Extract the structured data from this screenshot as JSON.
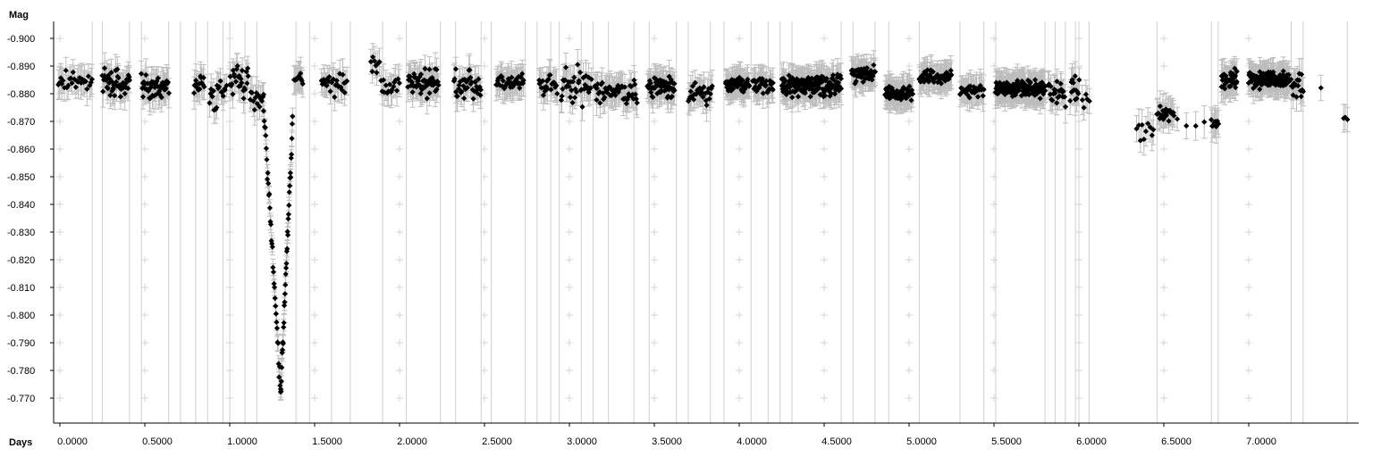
{
  "chart_data": {
    "type": "scatter",
    "xlabel": "Days",
    "ylabel": "Mag",
    "xlim": [
      -0.01,
      7.6
    ],
    "ylim": [
      -0.765,
      -0.907
    ],
    "y_inverted": true,
    "x_ticks": [
      0.0,
      0.5,
      1.0,
      1.5,
      2.0,
      2.5,
      3.0,
      3.5,
      4.0,
      4.5,
      5.0,
      5.5,
      6.0,
      6.5,
      7.0
    ],
    "x_tick_labels": [
      "0.0000",
      "0.5000",
      "1.0000",
      "1.5000",
      "2.0000",
      "2.5000",
      "3.0000",
      "3.5000",
      "4.0000",
      "4.5000",
      "5.0000",
      "5.5000",
      "6.0000",
      "6.5000",
      "7.0000"
    ],
    "y_ticks": [
      -0.9,
      -0.89,
      -0.88,
      -0.87,
      -0.86,
      -0.85,
      -0.84,
      -0.83,
      -0.82,
      -0.81,
      -0.8,
      -0.79,
      -0.78,
      -0.77
    ],
    "y_tick_labels": [
      "-0.900",
      "-0.890",
      "-0.880",
      "-0.870",
      "-0.860",
      "-0.850",
      "-0.840",
      "-0.830",
      "-0.820",
      "-0.810",
      "-0.800",
      "-0.790",
      "-0.780",
      "-0.770"
    ],
    "session_boundaries": [
      0.19,
      0.25,
      0.41,
      0.48,
      0.64,
      0.71,
      0.8,
      0.87,
      0.96,
      1.0,
      1.09,
      1.16,
      1.39,
      1.47,
      1.6,
      1.71,
      1.9,
      2.04,
      2.24,
      2.33,
      2.48,
      2.54,
      2.74,
      2.81,
      2.89,
      2.94,
      3.07,
      3.14,
      3.23,
      3.38,
      3.47,
      3.63,
      3.7,
      3.83,
      3.91,
      4.07,
      4.17,
      4.24,
      4.31,
      4.6,
      4.67,
      4.8,
      4.88,
      5.06,
      5.3,
      5.44,
      5.51,
      5.8,
      5.86,
      5.92,
      5.98,
      6.0,
      6.06,
      6.46,
      6.78,
      6.82,
      7.25,
      7.32,
      7.58
    ],
    "series": [
      {
        "segments": [
          {
            "x0": -0.01,
            "x1": 0.19,
            "mean": -0.885,
            "spread": 0.006,
            "n": 28
          },
          {
            "x0": 0.25,
            "x1": 0.41,
            "mean": -0.884,
            "spread": 0.007,
            "n": 45
          },
          {
            "x0": 0.48,
            "x1": 0.64,
            "mean": -0.882,
            "spread": 0.007,
            "n": 45
          },
          {
            "x0": 0.79,
            "x1": 0.85,
            "mean": -0.884,
            "spread": 0.006,
            "n": 14
          },
          {
            "x0": 0.88,
            "x1": 0.98,
            "mean": -0.88,
            "spread": 0.009,
            "n": 18
          },
          {
            "x0": 1.0,
            "x1": 1.11,
            "mean": -0.884,
            "spread": 0.008,
            "n": 26
          },
          {
            "x0": 1.12,
            "x1": 1.2,
            "mean": -0.878,
            "spread": 0.006,
            "n": 14
          },
          {
            "x0": 1.38,
            "x1": 1.43,
            "mean": -0.886,
            "spread": 0.005,
            "n": 12
          },
          {
            "x0": 1.54,
            "x1": 1.69,
            "mean": -0.884,
            "spread": 0.006,
            "n": 26
          },
          {
            "x0": 1.83,
            "x1": 1.88,
            "mean": -0.89,
            "spread": 0.004,
            "n": 8
          },
          {
            "x0": 1.89,
            "x1": 2.0,
            "mean": -0.882,
            "spread": 0.006,
            "n": 16
          },
          {
            "x0": 2.05,
            "x1": 2.23,
            "mean": -0.884,
            "spread": 0.007,
            "n": 60
          },
          {
            "x0": 2.32,
            "x1": 2.48,
            "mean": -0.883,
            "spread": 0.008,
            "n": 36
          },
          {
            "x0": 2.57,
            "x1": 2.73,
            "mean": -0.884,
            "spread": 0.004,
            "n": 40
          },
          {
            "x0": 2.82,
            "x1": 2.93,
            "mean": -0.883,
            "spread": 0.006,
            "n": 22
          },
          {
            "x0": 2.95,
            "x1": 3.13,
            "mean": -0.883,
            "spread": 0.009,
            "n": 38
          },
          {
            "x0": 3.15,
            "x1": 3.4,
            "mean": -0.881,
            "spread": 0.006,
            "n": 55
          },
          {
            "x0": 3.46,
            "x1": 3.62,
            "mean": -0.883,
            "spread": 0.006,
            "n": 55
          },
          {
            "x0": 3.7,
            "x1": 3.84,
            "mean": -0.88,
            "spread": 0.006,
            "n": 28
          },
          {
            "x0": 3.92,
            "x1": 4.06,
            "mean": -0.883,
            "spread": 0.004,
            "n": 50
          },
          {
            "x0": 4.08,
            "x1": 4.2,
            "mean": -0.883,
            "spread": 0.004,
            "n": 32
          },
          {
            "x0": 4.25,
            "x1": 4.6,
            "mean": -0.883,
            "spread": 0.005,
            "n": 160
          },
          {
            "x0": 4.66,
            "x1": 4.8,
            "mean": -0.887,
            "spread": 0.004,
            "n": 50
          },
          {
            "x0": 4.86,
            "x1": 5.02,
            "mean": -0.88,
            "spread": 0.004,
            "n": 60
          },
          {
            "x0": 5.06,
            "x1": 5.25,
            "mean": -0.886,
            "spread": 0.004,
            "n": 55
          },
          {
            "x0": 5.3,
            "x1": 5.44,
            "mean": -0.881,
            "spread": 0.004,
            "n": 30
          },
          {
            "x0": 5.51,
            "x1": 5.8,
            "mean": -0.882,
            "spread": 0.004,
            "n": 160
          },
          {
            "x0": 5.82,
            "x1": 5.92,
            "mean": -0.88,
            "spread": 0.006,
            "n": 22
          },
          {
            "x0": 5.95,
            "x1": 6.0,
            "mean": -0.881,
            "spread": 0.009,
            "n": 14
          },
          {
            "x0": 6.02,
            "x1": 6.06,
            "mean": -0.877,
            "spread": 0.004,
            "n": 5
          },
          {
            "x0": 6.34,
            "x1": 6.44,
            "mean": -0.868,
            "spread": 0.006,
            "n": 10
          },
          {
            "x0": 6.46,
            "x1": 6.56,
            "mean": -0.873,
            "spread": 0.004,
            "n": 22
          },
          {
            "x0": 6.58,
            "x1": 6.74,
            "mean": -0.868,
            "spread": 0.004,
            "n": 4
          },
          {
            "x0": 6.78,
            "x1": 6.82,
            "mean": -0.869,
            "spread": 0.004,
            "n": 8
          },
          {
            "x0": 6.84,
            "x1": 6.93,
            "mean": -0.885,
            "spread": 0.006,
            "n": 40
          },
          {
            "x0": 7.0,
            "x1": 7.24,
            "mean": -0.885,
            "spread": 0.004,
            "n": 120
          },
          {
            "x0": 7.25,
            "x1": 7.32,
            "mean": -0.883,
            "spread": 0.006,
            "n": 18
          },
          {
            "x0": 7.4,
            "x1": 7.45,
            "mean": -0.882,
            "spread": 0.002,
            "n": 1
          },
          {
            "x0": 7.56,
            "x1": 7.58,
            "mean": -0.871,
            "spread": 0.003,
            "n": 3
          }
        ],
        "dips": [
          {
            "x0": 1.2,
            "x1": 1.3,
            "start": -0.876,
            "depth": -0.772
          },
          {
            "x0": 1.3,
            "x1": 1.37,
            "start": -0.772,
            "depth": -0.87
          }
        ]
      }
    ]
  }
}
